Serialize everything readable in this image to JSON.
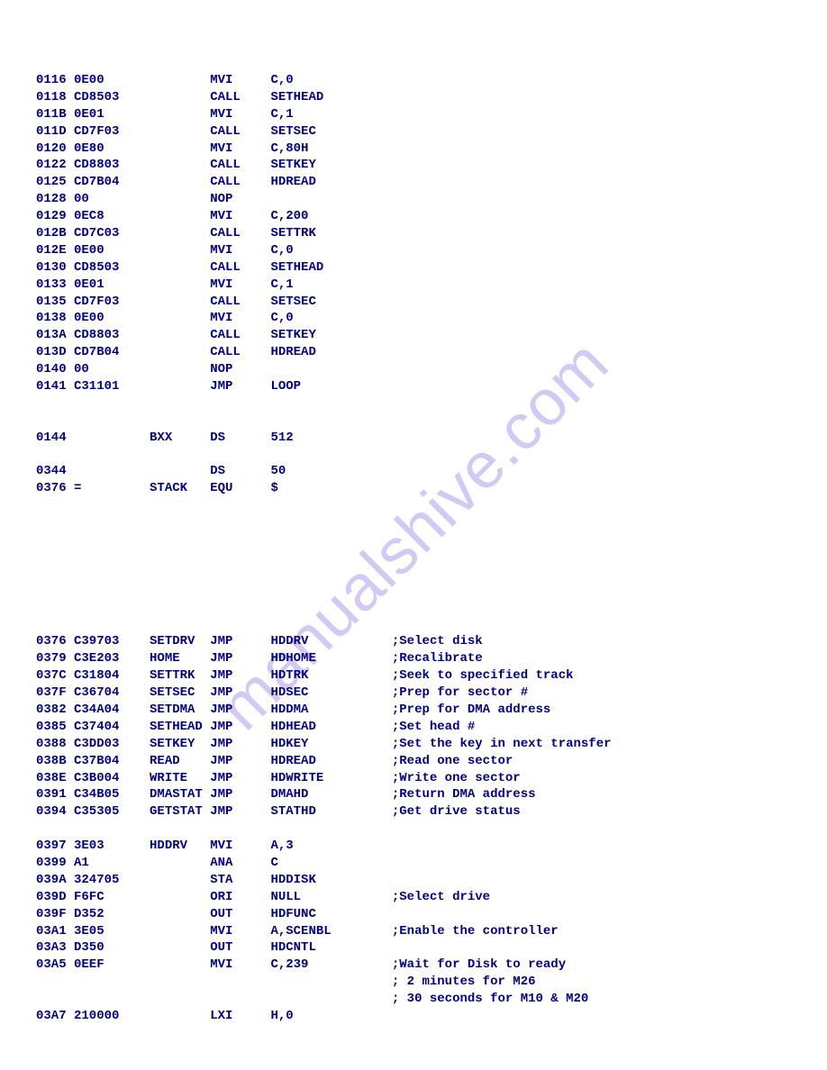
{
  "watermark": "manualshive.com",
  "text_color": "#000080",
  "background_color": "#ffffff",
  "watermark_color": "rgba(130,100,220,0.35)",
  "font_family": "Courier New",
  "font_size_pt": 11,
  "lines": [
    {
      "addr": "0116",
      "hex": "0E00",
      "label": "",
      "op": "MVI",
      "operand": "C,0",
      "comment": ""
    },
    {
      "addr": "0118",
      "hex": "CD8503",
      "label": "",
      "op": "CALL",
      "operand": "SETHEAD",
      "comment": ""
    },
    {
      "addr": "011B",
      "hex": "0E01",
      "label": "",
      "op": "MVI",
      "operand": "C,1",
      "comment": ""
    },
    {
      "addr": "011D",
      "hex": "CD7F03",
      "label": "",
      "op": "CALL",
      "operand": "SETSEC",
      "comment": ""
    },
    {
      "addr": "0120",
      "hex": "0E80",
      "label": "",
      "op": "MVI",
      "operand": "C,80H",
      "comment": ""
    },
    {
      "addr": "0122",
      "hex": "CD8803",
      "label": "",
      "op": "CALL",
      "operand": "SETKEY",
      "comment": ""
    },
    {
      "addr": "0125",
      "hex": "CD7B04",
      "label": "",
      "op": "CALL",
      "operand": "HDREAD",
      "comment": ""
    },
    {
      "addr": "0128",
      "hex": "00",
      "label": "",
      "op": "NOP",
      "operand": "",
      "comment": ""
    },
    {
      "addr": "0129",
      "hex": "0EC8",
      "label": "",
      "op": "MVI",
      "operand": "C,200",
      "comment": ""
    },
    {
      "addr": "012B",
      "hex": "CD7C03",
      "label": "",
      "op": "CALL",
      "operand": "SETTRK",
      "comment": ""
    },
    {
      "addr": "012E",
      "hex": "0E00",
      "label": "",
      "op": "MVI",
      "operand": "C,0",
      "comment": ""
    },
    {
      "addr": "0130",
      "hex": "CD8503",
      "label": "",
      "op": "CALL",
      "operand": "SETHEAD",
      "comment": ""
    },
    {
      "addr": "0133",
      "hex": "0E01",
      "label": "",
      "op": "MVI",
      "operand": "C,1",
      "comment": ""
    },
    {
      "addr": "0135",
      "hex": "CD7F03",
      "label": "",
      "op": "CALL",
      "operand": "SETSEC",
      "comment": ""
    },
    {
      "addr": "0138",
      "hex": "0E00",
      "label": "",
      "op": "MVI",
      "operand": "C,0",
      "comment": ""
    },
    {
      "addr": "013A",
      "hex": "CD8803",
      "label": "",
      "op": "CALL",
      "operand": "SETKEY",
      "comment": ""
    },
    {
      "addr": "013D",
      "hex": "CD7B04",
      "label": "",
      "op": "CALL",
      "operand": "HDREAD",
      "comment": ""
    },
    {
      "addr": "0140",
      "hex": "00",
      "label": "",
      "op": "NOP",
      "operand": "",
      "comment": ""
    },
    {
      "addr": "0141",
      "hex": "C31101",
      "label": "",
      "op": "JMP",
      "operand": "LOOP",
      "comment": ""
    },
    {
      "blank": true
    },
    {
      "blank": true
    },
    {
      "addr": "0144",
      "hex": "",
      "label": "BXX",
      "op": "DS",
      "operand": "512",
      "comment": ""
    },
    {
      "blank": true
    },
    {
      "addr": "0344",
      "hex": "",
      "label": "",
      "op": "DS",
      "operand": "50",
      "comment": ""
    },
    {
      "addr": "0376",
      "hex": "=",
      "label": "STACK",
      "op": "EQU",
      "operand": "$",
      "comment": ""
    },
    {
      "blank": true
    },
    {
      "blank": true
    },
    {
      "blank": true
    },
    {
      "blank": true
    },
    {
      "blank": true
    },
    {
      "blank": true
    },
    {
      "blank": true
    },
    {
      "blank": true
    },
    {
      "addr": "0376",
      "hex": "C39703",
      "label": "SETDRV",
      "op": "JMP",
      "operand": "HDDRV",
      "comment": ";Select disk"
    },
    {
      "addr": "0379",
      "hex": "C3E203",
      "label": "HOME",
      "op": "JMP",
      "operand": "HDHOME",
      "comment": ";Recalibrate"
    },
    {
      "addr": "037C",
      "hex": "C31804",
      "label": "SETTRK",
      "op": "JMP",
      "operand": "HDTRK",
      "comment": ";Seek to specified track"
    },
    {
      "addr": "037F",
      "hex": "C36704",
      "label": "SETSEC",
      "op": "JMP",
      "operand": "HDSEC",
      "comment": ";Prep for sector #"
    },
    {
      "addr": "0382",
      "hex": "C34A04",
      "label": "SETDMA",
      "op": "JMP",
      "operand": "HDDMA",
      "comment": ";Prep for DMA address"
    },
    {
      "addr": "0385",
      "hex": "C37404",
      "label": "SETHEAD",
      "op": "JMP",
      "operand": "HDHEAD",
      "comment": ";Set head #"
    },
    {
      "addr": "0388",
      "hex": "C3DD03",
      "label": "SETKEY",
      "op": "JMP",
      "operand": "HDKEY",
      "comment": ";Set the key in next transfer"
    },
    {
      "addr": "038B",
      "hex": "C37B04",
      "label": "READ",
      "op": "JMP",
      "operand": "HDREAD",
      "comment": ";Read one sector"
    },
    {
      "addr": "038E",
      "hex": "C3B004",
      "label": "WRITE",
      "op": "JMP",
      "operand": "HDWRITE",
      "comment": ";Write one sector"
    },
    {
      "addr": "0391",
      "hex": "C34B05",
      "label": "DMASTAT",
      "op": "JMP",
      "operand": "DMAHD",
      "comment": ";Return DMA address"
    },
    {
      "addr": "0394",
      "hex": "C35305",
      "label": "GETSTAT",
      "op": "JMP",
      "operand": "STATHD",
      "comment": ";Get drive status"
    },
    {
      "blank": true
    },
    {
      "addr": "0397",
      "hex": "3E03",
      "label": "HDDRV",
      "op": "MVI",
      "operand": "A,3",
      "comment": ""
    },
    {
      "addr": "0399",
      "hex": "A1",
      "label": "",
      "op": "ANA",
      "operand": "C",
      "comment": ""
    },
    {
      "addr": "039A",
      "hex": "324705",
      "label": "",
      "op": "STA",
      "operand": "HDDISK",
      "comment": ""
    },
    {
      "addr": "039D",
      "hex": "F6FC",
      "label": "",
      "op": "ORI",
      "operand": "NULL",
      "comment": ";Select drive"
    },
    {
      "addr": "039F",
      "hex": "D352",
      "label": "",
      "op": "OUT",
      "operand": "HDFUNC",
      "comment": ""
    },
    {
      "addr": "03A1",
      "hex": "3E05",
      "label": "",
      "op": "MVI",
      "operand": "A,SCENBL",
      "comment": ";Enable the controller"
    },
    {
      "addr": "03A3",
      "hex": "D350",
      "label": "",
      "op": "OUT",
      "operand": "HDCNTL",
      "comment": ""
    },
    {
      "addr": "03A5",
      "hex": "0EEF",
      "label": "",
      "op": "MVI",
      "operand": "C,239",
      "comment": ";Wait for Disk to ready"
    },
    {
      "addr": "",
      "hex": "",
      "label": "",
      "op": "",
      "operand": "",
      "comment": "; 2 minutes for M26"
    },
    {
      "addr": "",
      "hex": "",
      "label": "",
      "op": "",
      "operand": "",
      "comment": "; 30 seconds for M10 & M20"
    },
    {
      "addr": "03A7",
      "hex": "210000",
      "label": "",
      "op": "LXI",
      "operand": "H,0",
      "comment": ""
    }
  ],
  "columns": {
    "addr_width": 5,
    "hex_width": 10,
    "label_width": 8,
    "op_width": 8,
    "operand_width": 16
  }
}
